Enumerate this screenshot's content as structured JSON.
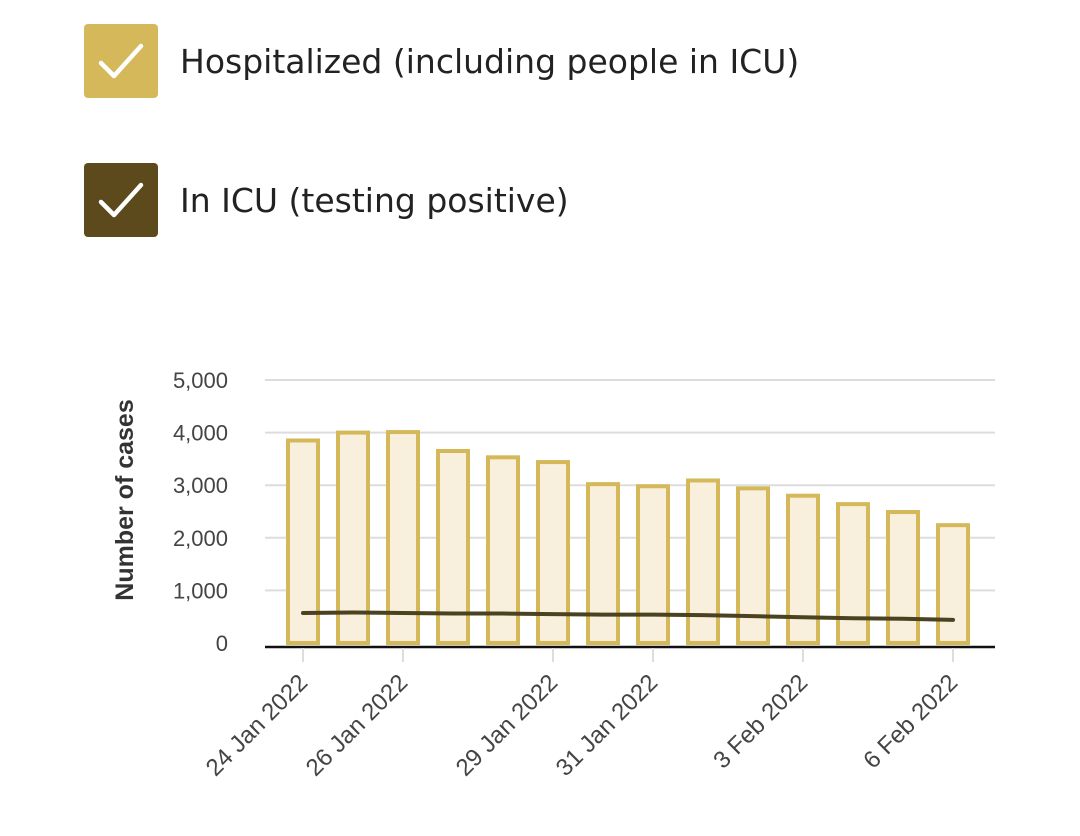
{
  "legend": {
    "items": [
      {
        "label": "Hospitalized (including people in ICU)",
        "color": "#d4b85a",
        "checked": true
      },
      {
        "label": "In ICU (testing positive)",
        "color": "#5c4a1c",
        "checked": true
      }
    ]
  },
  "colors": {
    "bar_fill": "#f8f0dc",
    "bar_stroke": "#d4b85a",
    "line": "#4a4220",
    "grid": "#dddddd",
    "axis": "#111111",
    "tick_text": "#444444"
  },
  "chart_data": {
    "type": "bar",
    "ylabel": "Number of cases",
    "ylim": [
      0,
      5000
    ],
    "yticks": [
      0,
      1000,
      2000,
      3000,
      4000,
      5000
    ],
    "ytick_labels": [
      "0",
      "1,000",
      "2,000",
      "3,000",
      "4,000",
      "5,000"
    ],
    "categories": [
      "24 Jan 2022",
      "25 Jan 2022",
      "26 Jan 2022",
      "27 Jan 2022",
      "28 Jan 2022",
      "29 Jan 2022",
      "30 Jan 2022",
      "31 Jan 2022",
      "1 Feb 2022",
      "2 Feb 2022",
      "3 Feb 2022",
      "4 Feb 2022",
      "5 Feb 2022",
      "6 Feb 2022"
    ],
    "xtick_labels": [
      "24 Jan 2022",
      "26 Jan 2022",
      "29 Jan 2022",
      "31 Jan 2022",
      "3 Feb 2022",
      "6 Feb 2022"
    ],
    "series": [
      {
        "name": "Hospitalized (including people in ICU)",
        "type": "bar",
        "values": [
          3850,
          4000,
          4010,
          3650,
          3530,
          3440,
          3020,
          2980,
          3090,
          2940,
          2800,
          2640,
          2490,
          2240
        ]
      },
      {
        "name": "In ICU (testing positive)",
        "type": "line",
        "values": [
          570,
          580,
          570,
          560,
          560,
          550,
          540,
          540,
          530,
          510,
          490,
          470,
          460,
          440
        ]
      }
    ]
  }
}
